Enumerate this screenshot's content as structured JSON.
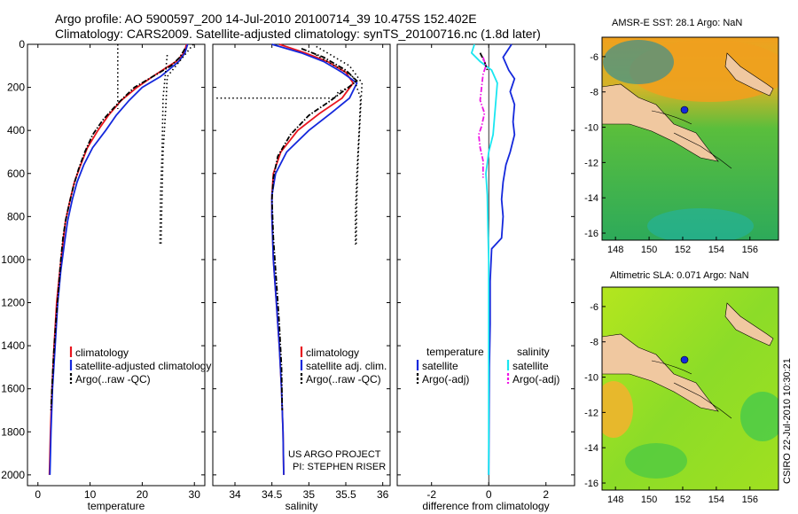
{
  "header": {
    "line1": "Argo profile: AO 5900597_200 14-Jul-2010 20100714_39 10.475S 152.402E",
    "line2": "Climatology: CARS2009. Satellite-adjusted climatology: synTS_20100716.nc (1.8d later)"
  },
  "credit": {
    "line1": "US ARGO PROJECT",
    "line2": "PI: STEPHEN RISER"
  },
  "stamp": "CSIRO 22-Jul-2010 10:30:21",
  "colors": {
    "climatology": "#e8141e",
    "satellite": "#1428dc",
    "argo": "#000000",
    "sat_salinity": "#19e6f0",
    "argo_salinity": "#f014e6"
  },
  "chart_data": [
    {
      "id": "temperature",
      "type": "line",
      "xlabel": "temperature",
      "ylabel": "",
      "xlim": [
        -2,
        32
      ],
      "ylim": [
        2050,
        0
      ],
      "grid": false,
      "xticks": [
        0,
        10,
        20,
        30
      ],
      "yticks": [
        0,
        200,
        400,
        600,
        800,
        1000,
        1200,
        1400,
        1600,
        1800,
        2000
      ],
      "legend": [
        "climatology",
        "satellite-adjusted climatology",
        "Argo(..raw -QC)"
      ],
      "series": [
        {
          "name": "climatology",
          "style": "solid",
          "color": "#e8141e",
          "points": [
            [
              28.5,
              0
            ],
            [
              28.0,
              40
            ],
            [
              26.5,
              80
            ],
            [
              24.5,
              110
            ],
            [
              22.0,
              150
            ],
            [
              19.0,
              200
            ],
            [
              16.0,
              260
            ],
            [
              13.5,
              330
            ],
            [
              11.5,
              400
            ],
            [
              9.5,
              480
            ],
            [
              8.2,
              560
            ],
            [
              7.0,
              640
            ],
            [
              6.2,
              720
            ],
            [
              5.3,
              820
            ],
            [
              4.8,
              920
            ],
            [
              4.2,
              1050
            ],
            [
              3.6,
              1200
            ],
            [
              3.1,
              1400
            ],
            [
              2.7,
              1600
            ],
            [
              2.4,
              1800
            ],
            [
              2.2,
              2000
            ]
          ]
        },
        {
          "name": "satellite-adjusted climatology",
          "style": "solid",
          "color": "#1428dc",
          "points": [
            [
              28.7,
              0
            ],
            [
              28.2,
              40
            ],
            [
              27.0,
              80
            ],
            [
              25.5,
              110
            ],
            [
              23.5,
              150
            ],
            [
              20.0,
              200
            ],
            [
              17.5,
              260
            ],
            [
              15.0,
              330
            ],
            [
              13.0,
              400
            ],
            [
              10.5,
              480
            ],
            [
              8.8,
              560
            ],
            [
              7.5,
              640
            ],
            [
              6.6,
              720
            ],
            [
              5.7,
              820
            ],
            [
              5.1,
              920
            ],
            [
              4.4,
              1050
            ],
            [
              3.8,
              1200
            ],
            [
              3.3,
              1400
            ],
            [
              2.8,
              1600
            ],
            [
              2.5,
              1800
            ],
            [
              2.3,
              2000
            ]
          ]
        },
        {
          "name": "Argo(..raw -QC)",
          "style": "dashdot",
          "color": "#000000",
          "points": [
            [
              28.2,
              20
            ],
            [
              27.2,
              60
            ],
            [
              25.5,
              100
            ],
            [
              22.0,
              150
            ],
            [
              18.5,
              200
            ],
            [
              15.5,
              270
            ],
            [
              12.5,
              350
            ],
            [
              10.5,
              420
            ],
            [
              9.0,
              500
            ],
            [
              7.8,
              580
            ],
            [
              6.8,
              660
            ],
            [
              6.0,
              740
            ],
            [
              5.3,
              820
            ],
            [
              4.8,
              900
            ],
            [
              4.4,
              1000
            ],
            [
              3.9,
              1150
            ],
            [
              3.4,
              1300
            ],
            [
              3.0,
              1450
            ],
            [
              2.7,
              1600
            ],
            [
              2.5,
              1700
            ]
          ]
        },
        {
          "name": "stdev-1",
          "style": "dotted",
          "color": "#000000",
          "points": [
            [
              15.3,
              0
            ],
            [
              15.3,
              300
            ]
          ]
        },
        {
          "name": "stdev-2",
          "style": "dotted",
          "color": "#000000",
          "points": [
            [
              24.8,
              50
            ],
            [
              24.0,
              250
            ],
            [
              23.8,
              500
            ],
            [
              23.5,
              700
            ],
            [
              23.4,
              930
            ]
          ]
        },
        {
          "name": "stdev-3",
          "style": "dotted",
          "color": "#000000",
          "points": [
            [
              29.8,
              0
            ],
            [
              24.8,
              150
            ],
            [
              24.5,
              300
            ],
            [
              24.0,
              500
            ],
            [
              23.8,
              700
            ],
            [
              23.6,
              930
            ]
          ]
        }
      ]
    },
    {
      "id": "salinity",
      "type": "line",
      "xlabel": "salinity",
      "ylabel": "",
      "xlim": [
        33.7,
        36.1
      ],
      "ylim": [
        2050,
        0
      ],
      "grid": false,
      "xticks": [
        34,
        34.5,
        35,
        35.5,
        36
      ],
      "legend": [
        "climatology",
        "satellite adj. clim.",
        "Argo(..raw -QC)"
      ],
      "series": [
        {
          "name": "climatology",
          "style": "solid",
          "color": "#e8141e",
          "points": [
            [
              34.6,
              0
            ],
            [
              34.95,
              40
            ],
            [
              35.25,
              80
            ],
            [
              35.5,
              130
            ],
            [
              35.6,
              180
            ],
            [
              35.45,
              250
            ],
            [
              35.15,
              320
            ],
            [
              34.85,
              400
            ],
            [
              34.62,
              500
            ],
            [
              34.52,
              600
            ],
            [
              34.5,
              700
            ],
            [
              34.5,
              800
            ],
            [
              34.52,
              1000
            ],
            [
              34.56,
              1200
            ],
            [
              34.6,
              1400
            ],
            [
              34.63,
              1600
            ],
            [
              34.65,
              1800
            ],
            [
              34.66,
              2000
            ]
          ]
        },
        {
          "name": "satellite adj. clim.",
          "style": "solid",
          "color": "#1428dc",
          "points": [
            [
              34.5,
              0
            ],
            [
              34.9,
              40
            ],
            [
              35.2,
              80
            ],
            [
              35.45,
              130
            ],
            [
              35.65,
              180
            ],
            [
              35.55,
              250
            ],
            [
              35.3,
              320
            ],
            [
              35.0,
              400
            ],
            [
              34.7,
              500
            ],
            [
              34.55,
              600
            ],
            [
              34.5,
              700
            ],
            [
              34.5,
              800
            ],
            [
              34.52,
              1000
            ],
            [
              34.56,
              1200
            ],
            [
              34.6,
              1400
            ],
            [
              34.63,
              1600
            ],
            [
              34.65,
              1800
            ],
            [
              34.66,
              2000
            ]
          ]
        },
        {
          "name": "Argo(..raw -QC)",
          "style": "dashdot",
          "color": "#000000",
          "points": [
            [
              34.9,
              20
            ],
            [
              35.2,
              60
            ],
            [
              35.5,
              120
            ],
            [
              35.65,
              170
            ],
            [
              35.3,
              260
            ],
            [
              35.0,
              330
            ],
            [
              34.75,
              420
            ],
            [
              34.58,
              520
            ],
            [
              34.52,
              620
            ],
            [
              34.5,
              720
            ],
            [
              34.52,
              900
            ],
            [
              34.56,
              1100
            ],
            [
              34.6,
              1300
            ],
            [
              34.63,
              1500
            ],
            [
              34.64,
              1700
            ]
          ]
        },
        {
          "name": "stdev-1",
          "style": "dotted",
          "color": "#000000",
          "points": [
            [
              35.05,
              40
            ],
            [
              35.6,
              150
            ],
            [
              35.7,
              250
            ],
            [
              35.68,
              400
            ],
            [
              35.65,
              600
            ],
            [
              35.63,
              800
            ],
            [
              35.63,
              930
            ]
          ]
        },
        {
          "name": "stdev-2",
          "style": "dotted",
          "color": "#000000",
          "points": [
            [
              35.1,
              10
            ],
            [
              35.55,
              100
            ],
            [
              35.72,
              180
            ],
            [
              35.7,
              300
            ],
            [
              35.67,
              500
            ],
            [
              35.65,
              700
            ],
            [
              35.64,
              930
            ]
          ]
        },
        {
          "name": "stdev-3",
          "style": "dotted",
          "color": "#000000",
          "points": [
            [
              33.75,
              250
            ],
            [
              35.35,
              250
            ],
            [
              35.4,
              220
            ],
            [
              35.55,
              200
            ]
          ]
        }
      ]
    },
    {
      "id": "difference",
      "type": "line",
      "xlabel": "difference from climatology",
      "ylabel": "",
      "xlim": [
        -3.2,
        3.0
      ],
      "ylim": [
        2050,
        0
      ],
      "grid": false,
      "xticks": [
        -2,
        0,
        2
      ],
      "legend": {
        "temperature": [
          "temperature",
          "satellite",
          "Argo(-adj)"
        ],
        "salinity": [
          "salinity",
          "satellite",
          "Argo(-adj)"
        ]
      },
      "series": [
        {
          "name": "temperature satellite",
          "style": "solid",
          "color": "#1428dc",
          "points": [
            [
              0.8,
              0
            ],
            [
              0.5,
              60
            ],
            [
              0.7,
              120
            ],
            [
              0.9,
              160
            ],
            [
              0.75,
              220
            ],
            [
              0.9,
              280
            ],
            [
              0.85,
              360
            ],
            [
              0.9,
              420
            ],
            [
              0.75,
              500
            ],
            [
              0.6,
              560
            ],
            [
              0.5,
              640
            ],
            [
              0.45,
              720
            ],
            [
              0.5,
              800
            ],
            [
              0.45,
              900
            ],
            [
              0.1,
              950
            ],
            [
              0.05,
              1100
            ],
            [
              0.05,
              1300
            ],
            [
              0.02,
              1500
            ],
            [
              0.0,
              2000
            ]
          ]
        },
        {
          "name": "salinity satellite",
          "style": "solid",
          "color": "#19e6f0",
          "points": [
            [
              -0.5,
              0
            ],
            [
              -0.6,
              40
            ],
            [
              -0.3,
              80
            ],
            [
              0.1,
              120
            ],
            [
              0.3,
              180
            ],
            [
              0.25,
              260
            ],
            [
              0.2,
              340
            ],
            [
              0.15,
              420
            ],
            [
              0.0,
              500
            ],
            [
              -0.1,
              600
            ],
            [
              -0.05,
              700
            ],
            [
              -0.03,
              850
            ],
            [
              0.0,
              1000
            ],
            [
              0.0,
              1300
            ],
            [
              0.0,
              1600
            ],
            [
              0.0,
              2000
            ]
          ]
        },
        {
          "name": "temperature Argo(-adj)",
          "style": "dashdot",
          "color": "#000000",
          "points": [
            [
              -0.3,
              40
            ],
            [
              -0.15,
              80
            ],
            [
              -0.05,
              120
            ]
          ]
        },
        {
          "name": "salinity Argo(-adj)",
          "style": "dashdot",
          "color": "#f014e6",
          "points": [
            [
              -0.2,
              60
            ],
            [
              -0.1,
              100
            ],
            [
              -0.2,
              140
            ],
            [
              -0.3,
              260
            ],
            [
              -0.15,
              320
            ],
            [
              -0.25,
              380
            ],
            [
              -0.35,
              420
            ],
            [
              -0.3,
              480
            ],
            [
              -0.2,
              540
            ],
            [
              -0.2,
              620
            ]
          ]
        }
      ]
    },
    {
      "id": "sst-map",
      "type": "heatmap",
      "title": "AMSR-E SST: 28.1 Argo: NaN",
      "xlim": [
        147.2,
        157.7
      ],
      "ylim": [
        -16.4,
        -4.9
      ],
      "xticks": [
        148,
        150,
        152,
        154,
        156
      ],
      "yticks": [
        -6,
        -8,
        -10,
        -12,
        -14,
        -16
      ]
    },
    {
      "id": "sla-map",
      "type": "heatmap",
      "title": "Altimetric SLA: 0.071 Argo: NaN",
      "xlim": [
        147.2,
        157.7
      ],
      "ylim": [
        -16.4,
        -4.9
      ],
      "xticks": [
        148,
        150,
        152,
        154,
        156
      ],
      "yticks": [
        -6,
        -8,
        -10,
        -12,
        -14,
        -16
      ]
    }
  ]
}
